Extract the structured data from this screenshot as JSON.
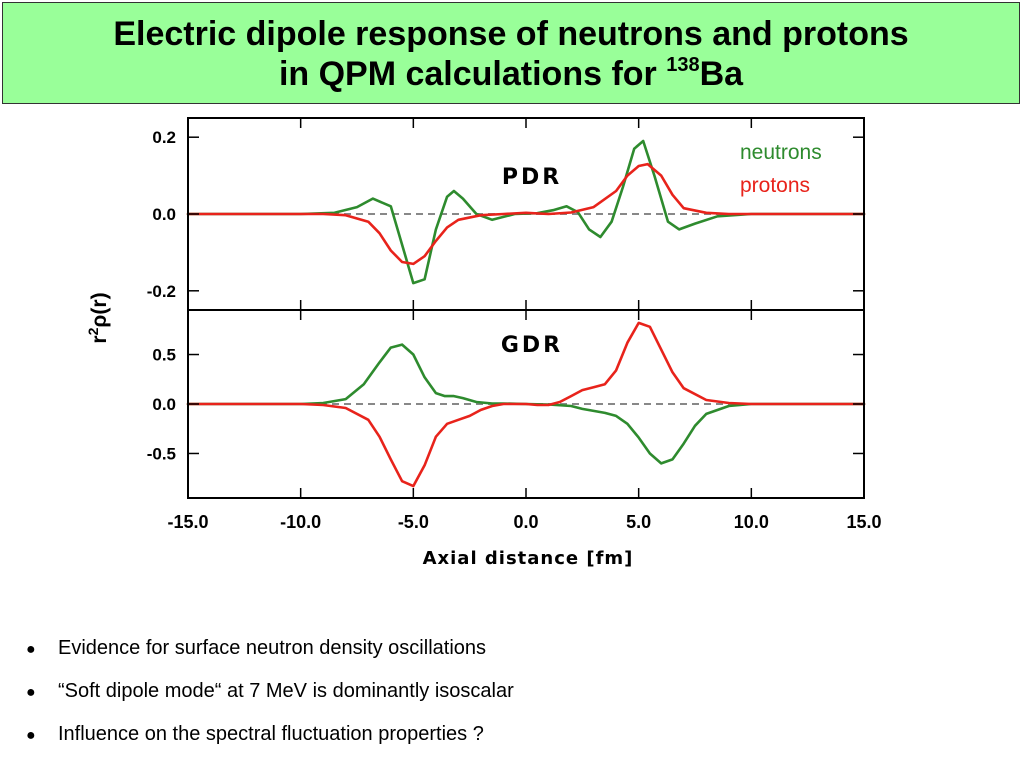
{
  "title": {
    "line1": "Electric dipole response of neutrons and protons",
    "line2_prefix": "in QPM calculations for ",
    "isotope_mass": "138",
    "isotope_symbol": "Ba"
  },
  "chart_data": {
    "type": "line",
    "xlabel": "Axial distance [fm]",
    "ylabel_parts": {
      "r": "r",
      "exp": "2",
      "rest": "ρ(r)"
    },
    "xlim": [
      -15,
      15
    ],
    "xticks": [
      "-15.0",
      "-10.0",
      "-5.0",
      "0.0",
      "5.0",
      "10.0",
      "15.0"
    ],
    "legend": {
      "placement": "top-right",
      "neutrons": "neutrons",
      "protons": "protons"
    },
    "colors": {
      "neutrons": "#2e8b2e",
      "protons": "#e8231b",
      "zero_line": "#888888"
    },
    "panels": [
      {
        "label": "PDR",
        "ylim": [
          -0.25,
          0.25
        ],
        "yticks": [
          0.2,
          0.0,
          -0.2
        ],
        "ytick_labels": [
          "0.2",
          "0.0",
          "-0.2"
        ],
        "series": [
          {
            "name": "neutrons",
            "x": [
              -15,
              -10,
              -8.5,
              -7.5,
              -6.8,
              -6,
              -5.5,
              -5,
              -4.5,
              -4,
              -3.5,
              -3.2,
              -2.8,
              -2.2,
              -1.5,
              -0.5,
              0.5,
              1.2,
              1.8,
              2.3,
              2.8,
              3.3,
              3.8,
              4.3,
              4.8,
              5.2,
              5.7,
              6.3,
              6.8,
              7.5,
              8.5,
              10,
              15
            ],
            "y": [
              0,
              0,
              0.003,
              0.018,
              0.04,
              0.02,
              -0.08,
              -0.18,
              -0.17,
              -0.04,
              0.045,
              0.06,
              0.04,
              0.0,
              -0.015,
              0.0,
              0.002,
              0.01,
              0.02,
              0.005,
              -0.04,
              -0.06,
              -0.02,
              0.07,
              0.17,
              0.19,
              0.1,
              -0.02,
              -0.04,
              -0.025,
              -0.006,
              0,
              0
            ]
          },
          {
            "name": "protons",
            "x": [
              -15,
              -9,
              -8,
              -7,
              -6.5,
              -6,
              -5.5,
              -5,
              -4.5,
              -4,
              -3.5,
              -3,
              -2,
              -1,
              0,
              1,
              2,
              3,
              4,
              4.5,
              5,
              5.4,
              6,
              6.5,
              7,
              8,
              9,
              15
            ],
            "y": [
              0,
              0,
              -0.003,
              -0.02,
              -0.05,
              -0.095,
              -0.125,
              -0.13,
              -0.11,
              -0.07,
              -0.035,
              -0.015,
              -0.003,
              0.0,
              0.003,
              0.0,
              0.004,
              0.018,
              0.06,
              0.1,
              0.125,
              0.13,
              0.1,
              0.05,
              0.015,
              0.003,
              0.0,
              0
            ]
          }
        ]
      },
      {
        "label": "GDR",
        "ylim": [
          -0.95,
          0.95
        ],
        "yticks": [
          0.5,
          0.0,
          -0.5
        ],
        "ytick_labels": [
          "0.5",
          "0.0",
          "-0.5"
        ],
        "series": [
          {
            "name": "neutrons",
            "x": [
              -15,
              -10,
              -9,
              -8,
              -7.2,
              -6.5,
              -6,
              -5.5,
              -5,
              -4.5,
              -4,
              -3.6,
              -3.2,
              -2.8,
              -2.2,
              -1.5,
              -1,
              0,
              1,
              2,
              2.5,
              3,
              3.5,
              4,
              4.5,
              5,
              5.5,
              6,
              6.5,
              7,
              7.5,
              8,
              9,
              10,
              15
            ],
            "y": [
              0,
              0,
              0.01,
              0.05,
              0.2,
              0.42,
              0.57,
              0.6,
              0.5,
              0.27,
              0.11,
              0.08,
              0.08,
              0.06,
              0.02,
              0.005,
              0.005,
              0.0,
              -0.005,
              -0.02,
              -0.05,
              -0.07,
              -0.09,
              -0.12,
              -0.2,
              -0.34,
              -0.5,
              -0.6,
              -0.56,
              -0.4,
              -0.22,
              -0.1,
              -0.02,
              0,
              0
            ]
          },
          {
            "name": "protons",
            "x": [
              -15,
              -10,
              -9,
              -8,
              -7,
              -6.5,
              -6,
              -5.5,
              -5,
              -4.5,
              -4,
              -3.5,
              -3,
              -2.5,
              -2,
              -1.5,
              -1,
              0,
              0.5,
              1,
              1.5,
              2,
              2.5,
              3,
              3.5,
              4,
              4.5,
              5,
              5.5,
              6,
              6.5,
              7,
              8,
              9,
              10,
              15
            ],
            "y": [
              0,
              0,
              -0.01,
              -0.04,
              -0.16,
              -0.33,
              -0.56,
              -0.78,
              -0.83,
              -0.62,
              -0.33,
              -0.2,
              -0.16,
              -0.12,
              -0.06,
              -0.02,
              0.0,
              0.0,
              -0.01,
              -0.01,
              0.02,
              0.08,
              0.14,
              0.17,
              0.2,
              0.34,
              0.62,
              0.82,
              0.78,
              0.55,
              0.32,
              0.16,
              0.04,
              0.01,
              0,
              0
            ]
          }
        ]
      }
    ]
  },
  "bullets": [
    "Evidence for surface neutron density oscillations",
    "“Soft dipole mode“ at 7 MeV is dominantly isoscalar",
    "Influence on the spectral fluctuation properties ?"
  ],
  "bullet_symbol": "●"
}
